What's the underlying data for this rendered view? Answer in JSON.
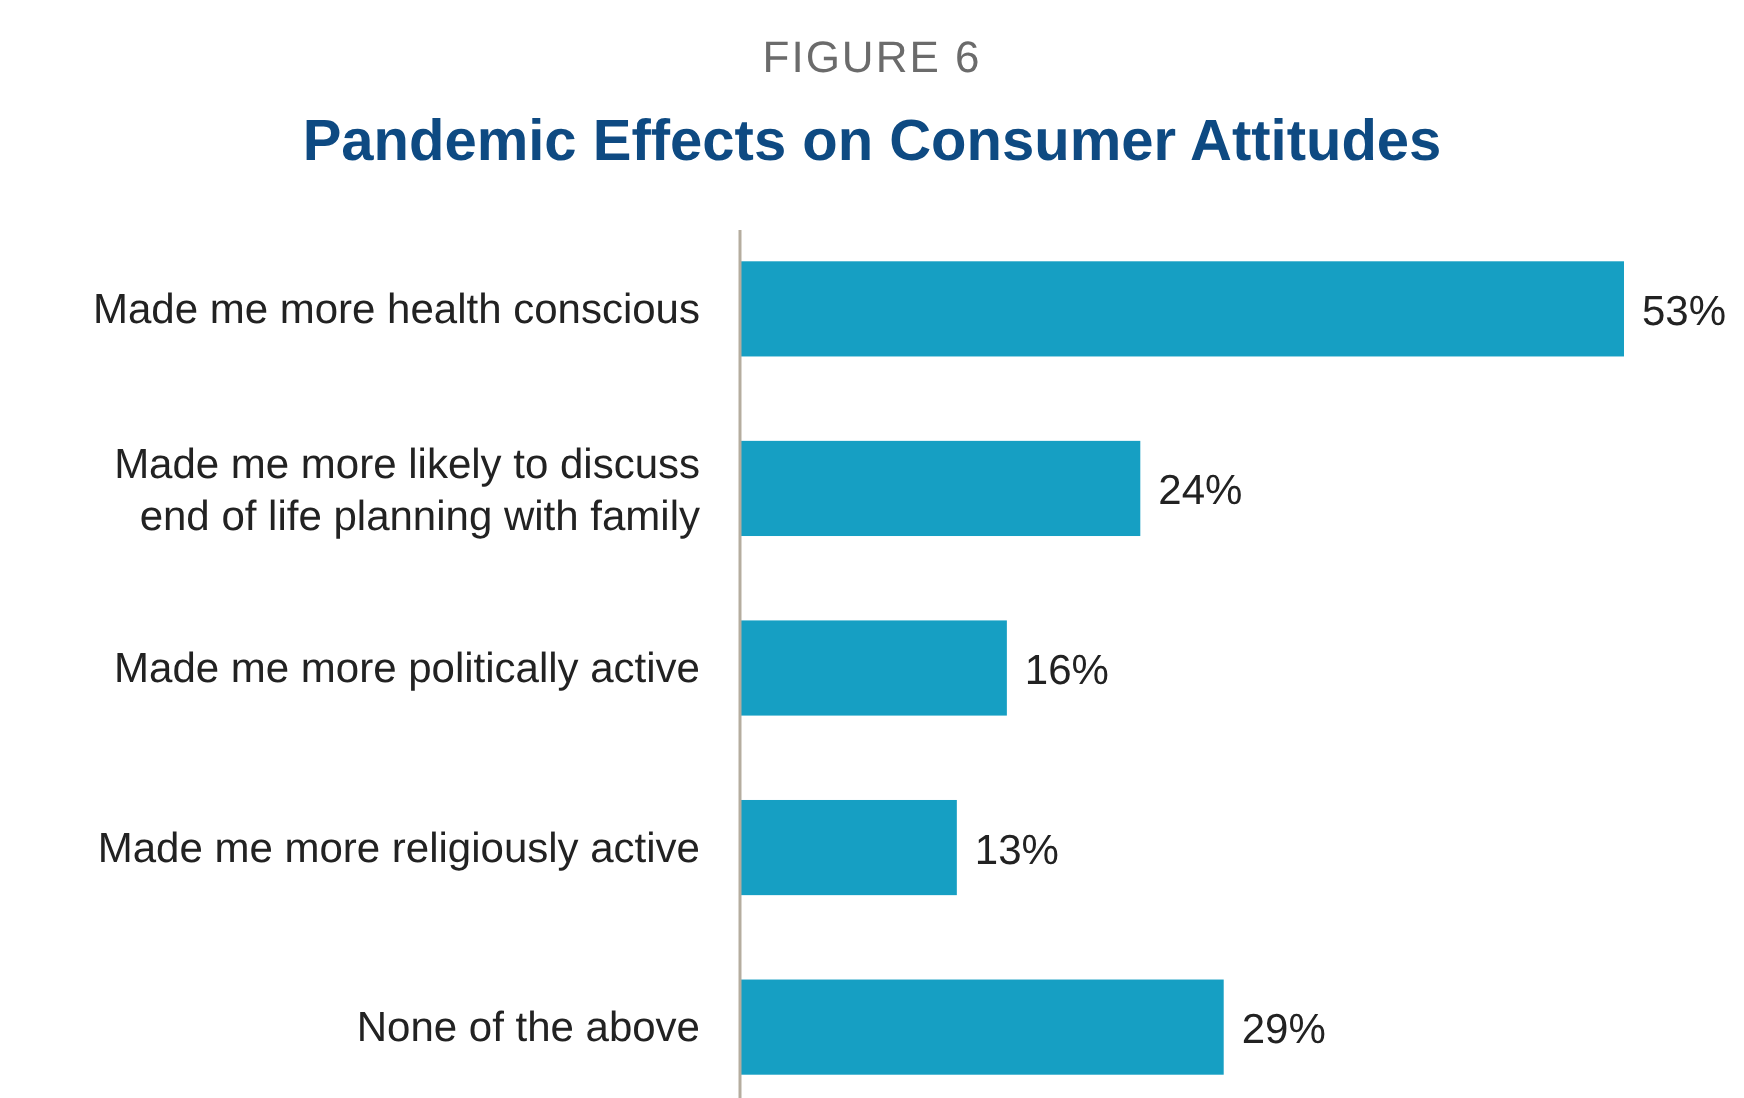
{
  "chart_data": {
    "type": "bar",
    "orientation": "horizontal",
    "subtitle": "FIGURE 6",
    "title": "Pandemic Effects on Consumer Attitudes",
    "categories": [
      "Made me more health conscious",
      "Made me more likely to discuss end of life planning with family",
      "Made me more politically active",
      "Made me more religiously active",
      "None of the above"
    ],
    "values": [
      53,
      24,
      16,
      13,
      29
    ],
    "value_labels": [
      "53%",
      "24%",
      "16%",
      "13%",
      "29%"
    ],
    "color": "#169fc3"
  }
}
